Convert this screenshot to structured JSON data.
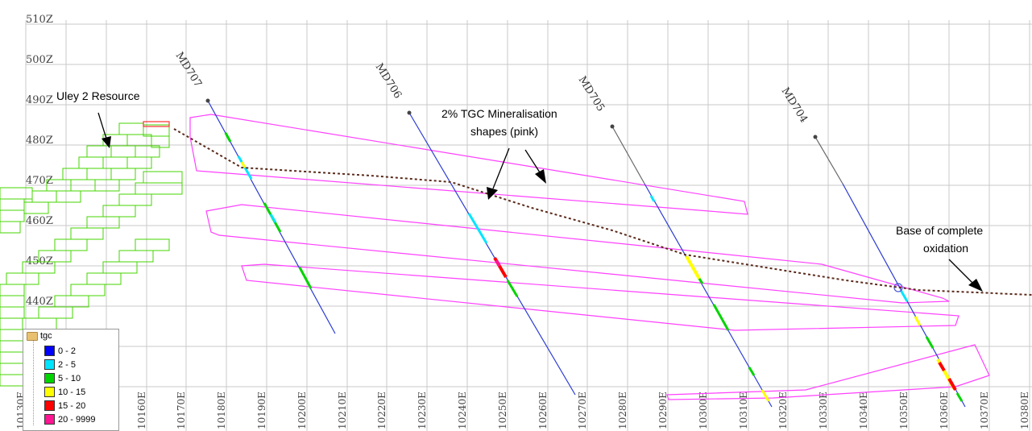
{
  "rl_labels": [
    "510Z",
    "500Z",
    "490Z",
    "480Z",
    "470Z",
    "460Z",
    "450Z",
    "440Z"
  ],
  "easting_labels": [
    "10130E",
    "10160E",
    "10170E",
    "10180E",
    "10190E",
    "10200E",
    "10210E",
    "10220E",
    "10230E",
    "10240E",
    "10250E",
    "10260E",
    "10270E",
    "10280E",
    "10290E",
    "10300E",
    "10310E",
    "10320E",
    "10330E",
    "10340E",
    "10350E",
    "10360E",
    "10370E",
    "10380E"
  ],
  "drillholes": [
    "MD707",
    "MD706",
    "MD705",
    "MD704"
  ],
  "annotations": {
    "resource": "Uley 2 Resource",
    "mineral_1": "2% TGC Mineralisation",
    "mineral_2": "shapes (pink)",
    "oxid_1": "Base of complete",
    "oxid_2": "oxidation"
  },
  "legend": {
    "title": "tgc",
    "items": [
      {
        "label": "0 - 2",
        "color": "#0000ff"
      },
      {
        "label": "2 - 5",
        "color": "#00e5ff"
      },
      {
        "label": "5 - 10",
        "color": "#00d400"
      },
      {
        "label": "10 - 15",
        "color": "#ffff00"
      },
      {
        "label": "15 - 20",
        "color": "#ff0000"
      },
      {
        "label": "20 - 9999",
        "color": "#ff1493"
      }
    ]
  }
}
